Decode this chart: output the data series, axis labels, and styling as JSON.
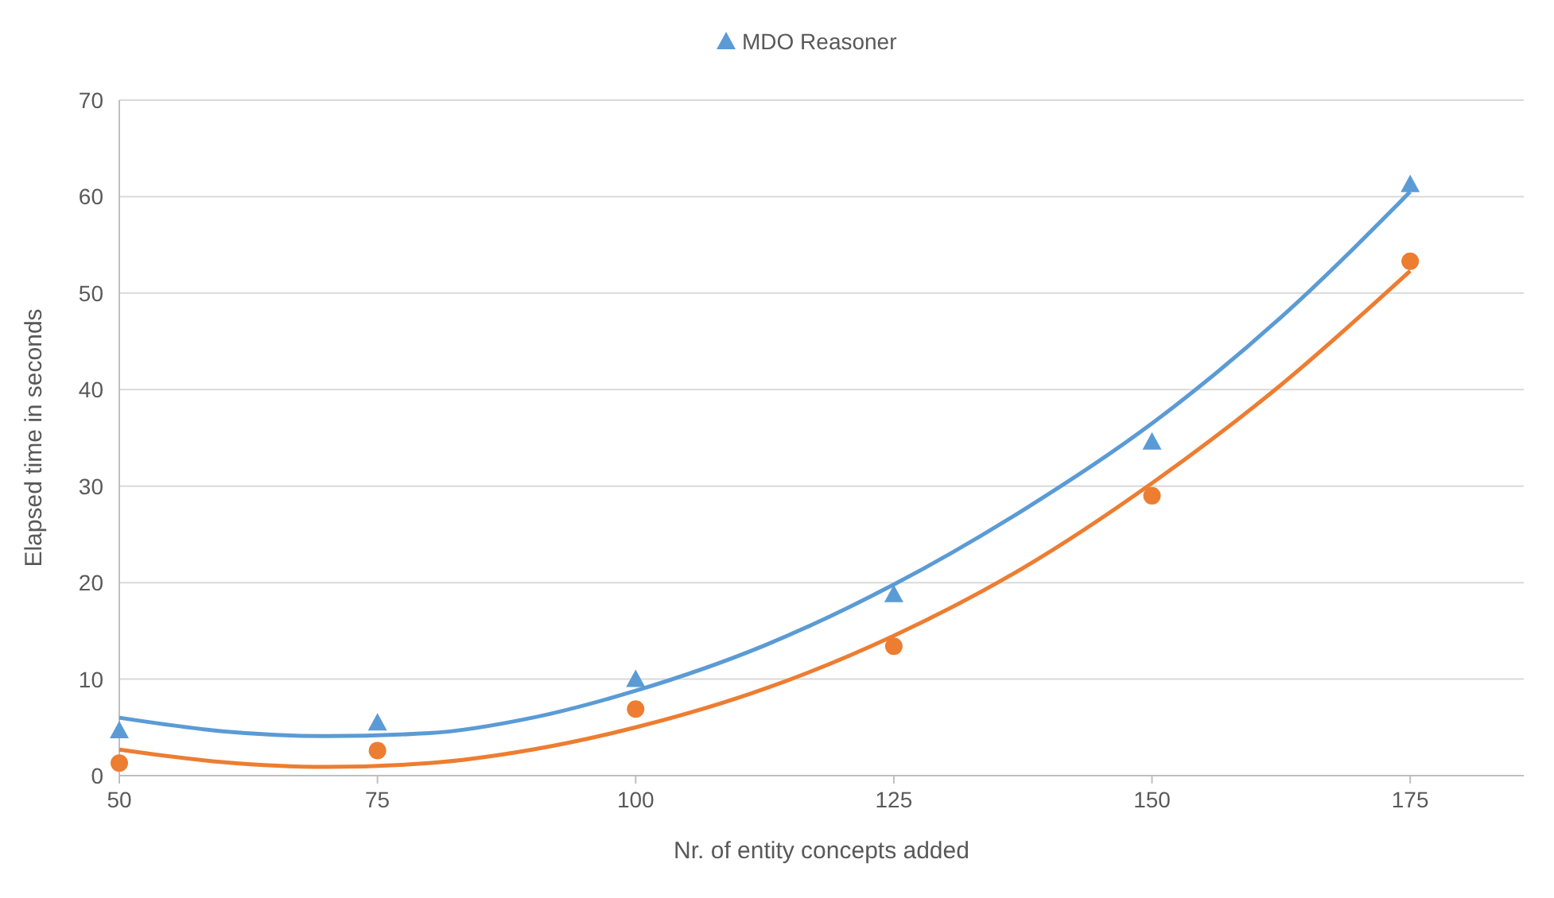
{
  "chart_data": {
    "type": "scatter",
    "xlabel": "Nr. of entity concepts added",
    "ylabel": "Elapsed time in seconds",
    "xlim": [
      50,
      186
    ],
    "xticks": [
      50,
      75,
      100,
      125,
      150,
      175
    ],
    "ylim": [
      0,
      70
    ],
    "yticks": [
      0,
      10,
      20,
      30,
      40,
      50,
      60,
      70
    ],
    "grid": "y",
    "legend": "top",
    "series": [
      {
        "name": "MDO Reasoner",
        "type": "scatter",
        "marker": "triangle",
        "color": "#5b9bd5",
        "x": [
          50,
          75,
          100,
          125,
          150,
          175
        ],
        "values": [
          4.7,
          5.5,
          10.0,
          18.8,
          34.6,
          61.3
        ]
      },
      {
        "type": "scatter",
        "marker": "circle",
        "color": "#ed7d31",
        "x": [
          50,
          75,
          100,
          125,
          150,
          175
        ],
        "values": [
          1.3,
          2.6,
          6.9,
          13.4,
          29.0,
          53.3
        ]
      },
      {
        "type": "line",
        "marker": "none",
        "line_style": "solid",
        "color": "#5b9bd5",
        "x": [
          50,
          60,
          70,
          80,
          90,
          100,
          112.5,
          125,
          137.5,
          150,
          162.5,
          175
        ],
        "values": [
          6.0,
          4.6,
          4.1,
          4.4,
          6.0,
          8.8,
          13.5,
          19.8,
          27.5,
          36.5,
          47.5,
          60.5
        ]
      },
      {
        "type": "line",
        "marker": "none",
        "line_style": "solid",
        "color": "#ed7d31",
        "x": [
          50,
          60,
          70,
          80,
          90,
          100,
          112.5,
          125,
          137.5,
          150,
          162.5,
          175
        ],
        "values": [
          2.7,
          1.4,
          0.9,
          1.3,
          2.7,
          5.0,
          9.0,
          14.5,
          21.5,
          30.3,
          40.5,
          52.3
        ]
      }
    ]
  }
}
